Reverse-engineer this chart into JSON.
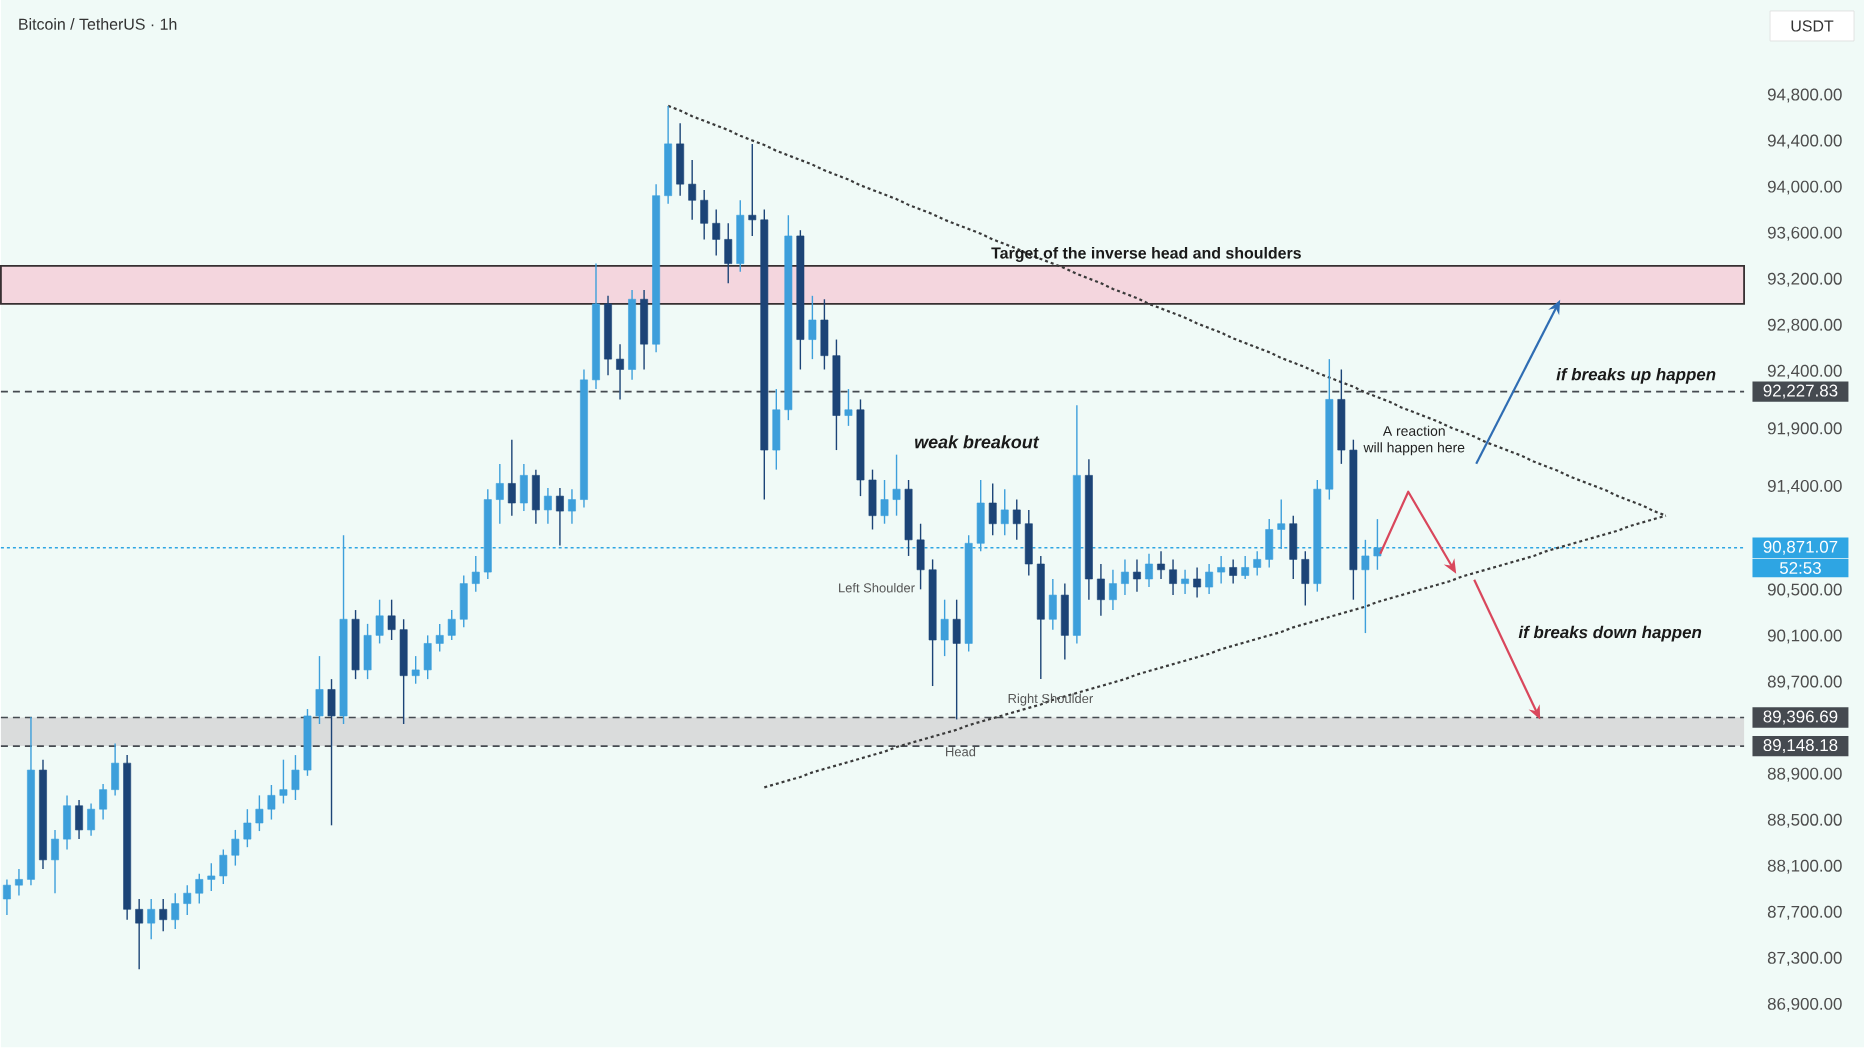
{
  "chart_data": {
    "type": "candlestick",
    "title": "Bitcoin / TetherUS · 1h",
    "ylabel": "USDT",
    "categories": [
      null,
      null,
      null,
      null,
      null,
      null,
      null,
      null,
      null,
      null,
      null,
      null,
      null,
      null,
      null,
      null,
      null,
      null,
      null,
      null,
      null,
      null,
      null,
      null,
      null,
      null,
      null,
      null,
      null,
      null,
      null,
      null,
      null,
      null,
      null,
      null,
      null,
      null,
      null,
      null,
      null,
      null,
      null,
      null,
      null,
      null,
      null,
      null,
      null,
      null,
      null,
      null,
      null,
      null,
      null,
      null,
      null,
      null,
      null,
      null,
      null,
      null,
      null,
      null,
      null,
      null,
      null,
      null,
      null,
      null,
      null,
      null,
      null,
      null,
      null,
      null,
      null,
      null,
      null,
      null,
      null,
      null,
      null,
      null,
      null,
      null,
      null,
      null,
      null,
      null,
      null,
      null,
      null,
      null,
      null,
      null,
      null,
      null,
      null,
      null,
      null,
      null,
      null,
      null,
      null,
      null,
      null,
      null,
      null,
      null,
      null,
      null,
      null,
      null,
      null,
      null,
      null,
      null,
      null,
      null,
      null,
      null,
      null,
      null,
      null,
      null,
      null,
      null,
      null,
      null,
      null,
      null,
      null,
      null,
      null,
      null,
      null,
      null,
      null,
      null,
      null,
      null,
      null,
      null,
      null
    ],
    "ohlc": [
      [
        87820,
        87990,
        87680,
        87940
      ],
      [
        87940,
        88080,
        87850,
        87990
      ],
      [
        87990,
        89400,
        87940,
        88940
      ],
      [
        88940,
        89030,
        88080,
        88160
      ],
      [
        88160,
        88420,
        87870,
        88340
      ],
      [
        88340,
        88720,
        88250,
        88630
      ],
      [
        88630,
        88680,
        88340,
        88420
      ],
      [
        88420,
        88650,
        88370,
        88600
      ],
      [
        88600,
        88820,
        88510,
        88770
      ],
      [
        88770,
        89170,
        88720,
        89000
      ],
      [
        89000,
        89070,
        87640,
        87730
      ],
      [
        87730,
        87820,
        87210,
        87610
      ],
      [
        87610,
        87820,
        87470,
        87730
      ],
      [
        87730,
        87820,
        87540,
        87640
      ],
      [
        87640,
        87870,
        87560,
        87780
      ],
      [
        87780,
        87940,
        87680,
        87870
      ],
      [
        87870,
        88040,
        87780,
        87990
      ],
      [
        87990,
        88130,
        87890,
        88020
      ],
      [
        88020,
        88250,
        87950,
        88200
      ],
      [
        88200,
        88420,
        88110,
        88340
      ],
      [
        88340,
        88600,
        88270,
        88480
      ],
      [
        88480,
        88720,
        88410,
        88600
      ],
      [
        88600,
        88810,
        88510,
        88720
      ],
      [
        88720,
        89030,
        88650,
        88770
      ],
      [
        88770,
        89070,
        88680,
        88940
      ],
      [
        88940,
        89470,
        88890,
        89410
      ],
      [
        89410,
        89930,
        89340,
        89640
      ],
      [
        89640,
        89730,
        88460,
        89410
      ],
      [
        89410,
        90980,
        89340,
        90250
      ],
      [
        90250,
        90330,
        89730,
        89810
      ],
      [
        89810,
        90210,
        89730,
        90110
      ],
      [
        90110,
        90420,
        90040,
        90280
      ],
      [
        90280,
        90420,
        90070,
        90160
      ],
      [
        90160,
        90250,
        89340,
        89760
      ],
      [
        89760,
        89930,
        89690,
        89810
      ],
      [
        89810,
        90110,
        89730,
        90040
      ],
      [
        90040,
        90210,
        89970,
        90110
      ],
      [
        90110,
        90330,
        90070,
        90250
      ],
      [
        90250,
        90630,
        90180,
        90560
      ],
      [
        90560,
        90800,
        90490,
        90660
      ],
      [
        90660,
        91380,
        90600,
        91290
      ],
      [
        91290,
        91600,
        91080,
        91430
      ],
      [
        91430,
        91810,
        91150,
        91260
      ],
      [
        91260,
        91600,
        91190,
        91500
      ],
      [
        91500,
        91550,
        91080,
        91200
      ],
      [
        91200,
        91390,
        91080,
        91320
      ],
      [
        91320,
        91390,
        90890,
        91190
      ],
      [
        91190,
        91380,
        91080,
        91290
      ],
      [
        91290,
        92420,
        91220,
        92330
      ],
      [
        92330,
        93340,
        92250,
        92990
      ],
      [
        92990,
        93060,
        92370,
        92510
      ],
      [
        92510,
        92640,
        92160,
        92420
      ],
      [
        92420,
        93110,
        92330,
        93030
      ],
      [
        93030,
        93110,
        92420,
        92640
      ],
      [
        92640,
        94030,
        92570,
        93930
      ],
      [
        93930,
        94710,
        93860,
        94380
      ],
      [
        94380,
        94560,
        93930,
        94030
      ],
      [
        94030,
        94240,
        93720,
        93890
      ],
      [
        93890,
        93980,
        93550,
        93690
      ],
      [
        93690,
        93810,
        93410,
        93550
      ],
      [
        93550,
        93690,
        93170,
        93340
      ],
      [
        93340,
        93890,
        93270,
        93760
      ],
      [
        93760,
        94380,
        93580,
        93720
      ],
      [
        93720,
        93810,
        91290,
        91720
      ],
      [
        91720,
        92250,
        91550,
        92070
      ],
      [
        92070,
        93760,
        91980,
        93580
      ],
      [
        93580,
        93630,
        92420,
        92680
      ],
      [
        92680,
        93060,
        92510,
        92850
      ],
      [
        92850,
        93030,
        92420,
        92540
      ],
      [
        92540,
        92680,
        91720,
        92020
      ],
      [
        92020,
        92250,
        91930,
        92070
      ],
      [
        92070,
        92160,
        91320,
        91460
      ],
      [
        91460,
        91550,
        91030,
        91150
      ],
      [
        91150,
        91460,
        91080,
        91290
      ],
      [
        91290,
        91680,
        91150,
        91380
      ],
      [
        91380,
        91460,
        90800,
        90940
      ],
      [
        90940,
        91080,
        90510,
        90680
      ],
      [
        90680,
        90770,
        89670,
        90070
      ],
      [
        90070,
        90420,
        89930,
        90250
      ],
      [
        90250,
        90420,
        89380,
        90040
      ],
      [
        90040,
        90980,
        89970,
        90910
      ],
      [
        90910,
        91460,
        90840,
        91260
      ],
      [
        91260,
        91430,
        90980,
        91080
      ],
      [
        91080,
        91380,
        90980,
        91200
      ],
      [
        91200,
        91290,
        90940,
        91080
      ],
      [
        91080,
        91200,
        90630,
        90730
      ],
      [
        90730,
        90800,
        89730,
        90250
      ],
      [
        90250,
        90600,
        90160,
        90460
      ],
      [
        90460,
        90560,
        89900,
        90110
      ],
      [
        90110,
        92110,
        90040,
        91500
      ],
      [
        91500,
        91640,
        90420,
        90600
      ],
      [
        90600,
        90730,
        90280,
        90420
      ],
      [
        90420,
        90680,
        90330,
        90560
      ],
      [
        90560,
        90770,
        90460,
        90660
      ],
      [
        90660,
        90770,
        90490,
        90600
      ],
      [
        90600,
        90820,
        90530,
        90730
      ],
      [
        90730,
        90840,
        90600,
        90680
      ],
      [
        90680,
        90770,
        90460,
        90560
      ],
      [
        90560,
        90680,
        90470,
        90600
      ],
      [
        90600,
        90700,
        90440,
        90530
      ],
      [
        90530,
        90730,
        90470,
        90660
      ],
      [
        90660,
        90800,
        90560,
        90700
      ],
      [
        90700,
        90770,
        90560,
        90630
      ],
      [
        90630,
        90800,
        90600,
        90700
      ],
      [
        90700,
        90840,
        90630,
        90770
      ],
      [
        90770,
        91120,
        90700,
        91030
      ],
      [
        91030,
        91290,
        90860,
        91080
      ],
      [
        91080,
        91150,
        90600,
        90770
      ],
      [
        90770,
        90840,
        90370,
        90560
      ],
      [
        90560,
        91460,
        90490,
        91380
      ],
      [
        91380,
        92510,
        91290,
        92160
      ],
      [
        92160,
        92420,
        91600,
        91720
      ],
      [
        91720,
        91810,
        90420,
        90680
      ],
      [
        90680,
        90940,
        90130,
        90800
      ],
      [
        90800,
        91120,
        90680,
        90871.07
      ],
      null,
      null,
      null,
      null,
      null,
      null,
      null,
      null,
      null,
      null,
      null,
      null,
      null,
      null,
      null,
      null,
      null,
      null,
      null,
      null,
      null,
      null,
      null,
      null,
      null,
      null,
      null,
      null,
      null,
      null
    ],
    "colors": [
      "#3d9fdb",
      "#3d9fdb",
      "#3d9fdb",
      "#1c4477",
      "#3d9fdb",
      "#3d9fdb",
      "#1c4477",
      "#3d9fdb",
      "#3d9fdb",
      "#3d9fdb",
      "#1c4477",
      "#1c4477",
      "#3d9fdb",
      "#1c4477",
      "#3d9fdb",
      "#3d9fdb",
      "#3d9fdb",
      "#3d9fdb",
      "#3d9fdb",
      "#3d9fdb",
      "#3d9fdb",
      "#3d9fdb",
      "#3d9fdb",
      "#3d9fdb",
      "#3d9fdb",
      "#3d9fdb",
      "#3d9fdb",
      "#1c4477",
      "#3d9fdb",
      "#1c4477",
      "#3d9fdb",
      "#3d9fdb",
      "#1c4477",
      "#1c4477",
      "#3d9fdb",
      "#3d9fdb",
      "#3d9fdb",
      "#3d9fdb",
      "#3d9fdb",
      "#3d9fdb",
      "#3d9fdb",
      "#3d9fdb",
      "#1c4477",
      "#3d9fdb",
      "#1c4477",
      "#3d9fdb",
      "#1c4477",
      "#3d9fdb",
      "#3d9fdb",
      "#3d9fdb",
      "#1c4477",
      "#1c4477",
      "#3d9fdb",
      "#1c4477",
      "#3d9fdb",
      "#3d9fdb",
      "#1c4477",
      "#1c4477",
      "#1c4477",
      "#1c4477",
      "#1c4477",
      "#3d9fdb",
      "#1c4477",
      "#1c4477",
      "#3d9fdb",
      "#3d9fdb",
      "#1c4477",
      "#3d9fdb",
      "#1c4477",
      "#1c4477",
      "#3d9fdb",
      "#1c4477",
      "#1c4477",
      "#3d9fdb",
      "#3d9fdb",
      "#1c4477",
      "#1c4477",
      "#1c4477",
      "#3d9fdb",
      "#1c4477",
      "#3d9fdb",
      "#3d9fdb",
      "#1c4477",
      "#3d9fdb",
      "#1c4477",
      "#1c4477",
      "#1c4477",
      "#3d9fdb",
      "#1c4477",
      "#3d9fdb",
      "#1c4477",
      "#1c4477",
      "#3d9fdb",
      "#3d9fdb",
      "#1c4477",
      "#3d9fdb",
      "#1c4477",
      "#1c4477",
      "#3d9fdb",
      "#1c4477",
      "#3d9fdb",
      "#3d9fdb",
      "#1c4477",
      "#3d9fdb",
      "#3d9fdb",
      "#3d9fdb",
      "#3d9fdb",
      "#1c4477",
      "#1c4477",
      "#3d9fdb",
      "#3d9fdb",
      "#1c4477",
      "#1c4477",
      "#3d9fdb",
      "#3d9fdb",
      null,
      null,
      null,
      null,
      null,
      null,
      null,
      null,
      null,
      null,
      null,
      null,
      null,
      null,
      null,
      null,
      null,
      null,
      null,
      null,
      null,
      null,
      null,
      null,
      null,
      null,
      null,
      null,
      null,
      null
    ],
    "series": [
      {
        "type": "line",
        "color": "#3a3a3a",
        "line_style": "dotted",
        "values": [
          null,
          null,
          null,
          null,
          null,
          null,
          null,
          null,
          null,
          null,
          null,
          null,
          null,
          null,
          null,
          null,
          null,
          null,
          null,
          null,
          null,
          null,
          null,
          null,
          null,
          null,
          null,
          null,
          null,
          null,
          null,
          null,
          null,
          null,
          null,
          null,
          null,
          null,
          null,
          null,
          null,
          null,
          null,
          null,
          null,
          null,
          null,
          null,
          null,
          null,
          null,
          null,
          null,
          null,
          null,
          94710,
          94670,
          94620,
          94580,
          94540,
          94500,
          94450,
          94410,
          94370,
          94320,
          94280,
          94240,
          94200,
          94150,
          94110,
          94070,
          94020,
          93980,
          93940,
          93900,
          93850,
          93810,
          93770,
          93720,
          93680,
          93640,
          93600,
          93550,
          93510,
          93470,
          93420,
          93380,
          93340,
          93300,
          93250,
          93210,
          93170,
          93120,
          93080,
          93040,
          92990,
          92950,
          92910,
          92870,
          92820,
          92780,
          92740,
          92690,
          92650,
          92610,
          92570,
          92520,
          92480,
          92440,
          92390,
          92350,
          92310,
          92270,
          92220,
          92180,
          92140,
          92090,
          92050,
          92010,
          91970,
          91920,
          91880,
          91840,
          91790,
          91750,
          91710,
          91670,
          91620,
          91580,
          91540,
          91490,
          91450,
          91410,
          91370,
          91320,
          91280,
          91240,
          91190,
          91150,
          null,
          null,
          null,
          null,
          null,
          null
        ]
      },
      {
        "type": "line",
        "color": "#3a3a3a",
        "line_style": "dotted",
        "values": [
          null,
          null,
          null,
          null,
          null,
          null,
          null,
          null,
          null,
          null,
          null,
          null,
          null,
          null,
          null,
          null,
          null,
          null,
          null,
          null,
          null,
          null,
          null,
          null,
          null,
          null,
          null,
          null,
          null,
          null,
          null,
          null,
          null,
          null,
          null,
          null,
          null,
          null,
          null,
          null,
          null,
          null,
          null,
          null,
          null,
          null,
          null,
          null,
          null,
          null,
          null,
          null,
          null,
          null,
          null,
          null,
          null,
          null,
          null,
          null,
          null,
          null,
          null,
          88790,
          88820,
          88850,
          88880,
          88920,
          88950,
          88980,
          89010,
          89040,
          89070,
          89100,
          89140,
          89170,
          89200,
          89230,
          89260,
          89290,
          89330,
          89360,
          89390,
          89420,
          89450,
          89480,
          89510,
          89550,
          89580,
          89610,
          89640,
          89670,
          89700,
          89730,
          89770,
          89800,
          89830,
          89860,
          89890,
          89920,
          89950,
          89990,
          90020,
          90050,
          90080,
          90110,
          90140,
          90180,
          90210,
          90240,
          90270,
          90300,
          90330,
          90360,
          90400,
          90430,
          90460,
          90490,
          90520,
          90550,
          90580,
          90620,
          90650,
          90680,
          90710,
          90740,
          90770,
          90800,
          90840,
          90870,
          90900,
          90930,
          90960,
          90990,
          91020,
          91060,
          91090,
          91120,
          91150,
          null,
          null,
          null,
          null,
          null,
          null
        ]
      }
    ],
    "bands": [
      {
        "axis": "y",
        "from": 92990,
        "to": 93320,
        "label": "Target of the inverse head and shoulders",
        "color": "#f4d6de"
      },
      {
        "axis": "y",
        "from": 89148.18,
        "to": 89396.69,
        "color": "#dadcdc"
      }
    ],
    "ref_lines": [
      {
        "axis": "y",
        "value": 92227.83,
        "label": "92,227.83",
        "color": "#454a50",
        "line_style": "dashed"
      },
      {
        "axis": "y",
        "value": 90871.07,
        "label": "90,871.07",
        "color": "#2ea5e3",
        "line_style": "dotted"
      },
      {
        "axis": "y",
        "value": 89396.69,
        "label": "89,396.69",
        "color": "#454a50",
        "line_style": "dashed"
      },
      {
        "axis": "y",
        "value": 89148.18,
        "label": "89,148.18",
        "color": "#454a50",
        "line_style": "dashed"
      }
    ],
    "annotations": [
      "if breaks up happen",
      "weak breakout",
      "A reaction",
      "will happen here",
      "Left Shoulder",
      "Right Shoulder",
      "Head",
      "if breaks down happen",
      "52:53"
    ],
    "ylim": [
      86530,
      95630
    ],
    "yticks": [
      {
        "value": 94800,
        "label": "94,800.00"
      },
      {
        "value": 94400,
        "label": "94,400.00"
      },
      {
        "value": 94000,
        "label": "94,000.00"
      },
      {
        "value": 93600,
        "label": "93,600.00"
      },
      {
        "value": 93200,
        "label": "93,200.00"
      },
      {
        "value": 92800,
        "label": "92,800.00"
      },
      {
        "value": 92400,
        "label": "92,400.00"
      },
      {
        "value": 91900,
        "label": "91,900.00"
      },
      {
        "value": 91400,
        "label": "91,400.00"
      },
      {
        "value": 90500,
        "label": "90,500.00"
      },
      {
        "value": 90100,
        "label": "90,100.00"
      },
      {
        "value": 89700,
        "label": "89,700.00"
      },
      {
        "value": 88900,
        "label": "88,900.00"
      },
      {
        "value": 88500,
        "label": "88,500.00"
      },
      {
        "value": 88100,
        "label": "88,100.00"
      },
      {
        "value": 87700,
        "label": "87,700.00"
      },
      {
        "value": 87300,
        "label": "87,300.00"
      },
      {
        "value": 86900,
        "label": "86,900.00"
      }
    ],
    "tick_labels": "y"
  }
}
